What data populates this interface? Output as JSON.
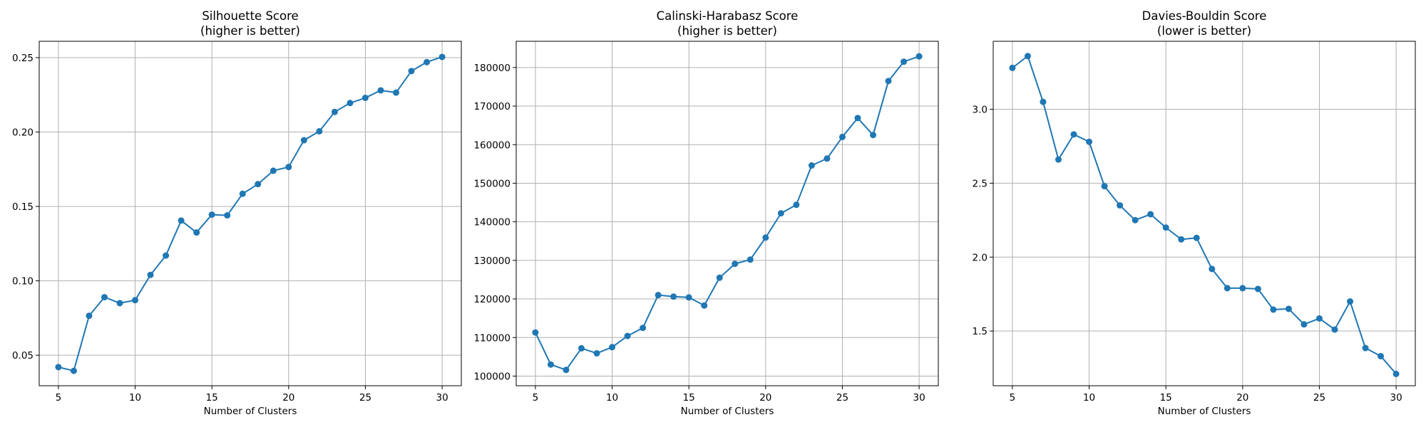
{
  "chart_data": [
    {
      "type": "line",
      "title_line1": "Silhouette Score",
      "title_line2": "(higher is better)",
      "xlabel": "Number of Clusters",
      "ylabel": "",
      "grid": true,
      "xlim": [
        3.75,
        31.25
      ],
      "ylim": [
        0.0295,
        0.261
      ],
      "xticks": [
        5,
        10,
        15,
        20,
        25,
        30
      ],
      "yticks": [
        0.05,
        0.1,
        0.15,
        0.2,
        0.25
      ],
      "ytick_labels": [
        "0.05",
        "0.10",
        "0.15",
        "0.20",
        "0.25"
      ],
      "color": "#1f77b4",
      "x": [
        5,
        6,
        7,
        8,
        9,
        10,
        11,
        12,
        13,
        14,
        15,
        16,
        17,
        18,
        19,
        20,
        21,
        22,
        23,
        24,
        25,
        26,
        27,
        28,
        29,
        30
      ],
      "y": [
        0.042,
        0.0395,
        0.0765,
        0.089,
        0.085,
        0.087,
        0.104,
        0.117,
        0.1405,
        0.1325,
        0.1445,
        0.144,
        0.1585,
        0.165,
        0.174,
        0.1765,
        0.1945,
        0.2005,
        0.2135,
        0.2195,
        0.223,
        0.228,
        0.2265,
        0.241,
        0.247,
        0.2505
      ]
    },
    {
      "type": "line",
      "title_line1": "Calinski-Harabasz Score",
      "title_line2": "(higher is better)",
      "xlabel": "Number of Clusters",
      "ylabel": "",
      "grid": true,
      "xlim": [
        3.75,
        31.25
      ],
      "ylim": [
        97500,
        186800
      ],
      "xticks": [
        5,
        10,
        15,
        20,
        25,
        30
      ],
      "yticks": [
        100000,
        110000,
        120000,
        130000,
        140000,
        150000,
        160000,
        170000,
        180000
      ],
      "ytick_labels": [
        "100000",
        "110000",
        "120000",
        "130000",
        "140000",
        "150000",
        "160000",
        "170000",
        "180000"
      ],
      "color": "#1f77b4",
      "x": [
        5,
        6,
        7,
        8,
        9,
        10,
        11,
        12,
        13,
        14,
        15,
        16,
        17,
        18,
        19,
        20,
        21,
        22,
        23,
        24,
        25,
        26,
        27,
        28,
        29,
        30
      ],
      "y": [
        111300,
        103000,
        101600,
        107200,
        105900,
        107500,
        110400,
        112500,
        121000,
        120600,
        120400,
        118300,
        125500,
        129100,
        130200,
        135900,
        142200,
        144400,
        154600,
        156400,
        162000,
        166900,
        162500,
        176500,
        181500,
        182900
      ]
    },
    {
      "type": "line",
      "title_line1": "Davies-Bouldin Score",
      "title_line2": "(lower is better)",
      "xlabel": "Number of Clusters",
      "ylabel": "",
      "grid": true,
      "xlim": [
        3.75,
        31.25
      ],
      "ylim": [
        1.13,
        3.46
      ],
      "xticks": [
        5,
        10,
        15,
        20,
        25,
        30
      ],
      "yticks": [
        1.5,
        2.0,
        2.5,
        3.0
      ],
      "ytick_labels": [
        "1.5",
        "2.0",
        "2.5",
        "3.0"
      ],
      "color": "#1f77b4",
      "x": [
        5,
        6,
        7,
        8,
        9,
        10,
        11,
        12,
        13,
        14,
        15,
        16,
        17,
        18,
        19,
        20,
        21,
        22,
        23,
        24,
        25,
        26,
        27,
        28,
        29,
        30
      ],
      "y": [
        3.28,
        3.36,
        3.05,
        2.66,
        2.83,
        2.78,
        2.48,
        2.35,
        2.25,
        2.29,
        2.2,
        2.12,
        2.13,
        1.92,
        1.79,
        1.79,
        1.785,
        1.645,
        1.65,
        1.545,
        1.585,
        1.51,
        1.7,
        1.385,
        1.33,
        1.21
      ]
    }
  ]
}
